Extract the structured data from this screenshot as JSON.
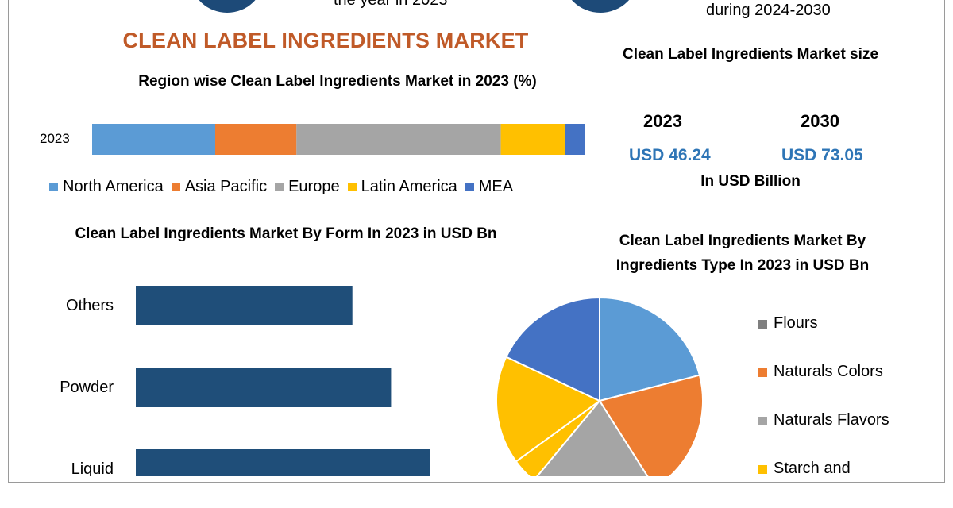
{
  "header": {
    "snippet_left": "the year in 2023",
    "snippet_right": "during 2024-2030"
  },
  "title": "CLEAN LABEL INGREDIENTS MARKET",
  "market_size": {
    "title": "Clean Label Ingredients Market size",
    "years": [
      "2023",
      "2030"
    ],
    "values": [
      "USD 46.24",
      "USD 73.05"
    ],
    "unit": "In USD Billion"
  },
  "colors": {
    "title": "#c05a28",
    "dark_blue": "#1d4a78",
    "value_blue": "#2e75b6"
  },
  "chart_data": [
    {
      "type": "bar",
      "orientation": "horizontal",
      "stacked": true,
      "title": "Region wise Clean Label Ingredients Market in 2023 (%)",
      "categories": [
        "2023"
      ],
      "xlim": [
        0,
        100
      ],
      "legend_position": "bottom",
      "series": [
        {
          "name": "North America",
          "values": [
            25
          ],
          "color": "#5b9bd5"
        },
        {
          "name": "Asia Pacific",
          "values": [
            16.5
          ],
          "color": "#ed7d31"
        },
        {
          "name": "Europe",
          "values": [
            41.5
          ],
          "color": "#a5a5a5"
        },
        {
          "name": "Latin America",
          "values": [
            13
          ],
          "color": "#ffc000"
        },
        {
          "name": "MEA",
          "values": [
            4
          ],
          "color": "#4472c4"
        }
      ]
    },
    {
      "type": "bar",
      "orientation": "horizontal",
      "title": "Clean Label Ingredients Market By Form In 2023 in USD Bn",
      "categories": [
        "Others",
        "Powder",
        "Liquid"
      ],
      "values": [
        14,
        16.5,
        19
      ],
      "xlim": [
        0,
        25
      ],
      "color": "#1f4e79"
    },
    {
      "type": "pie",
      "title": "Clean Label Ingredients Market By Ingredients Type In 2023 in USD Bn",
      "legend_position": "right",
      "labels": [
        "Flours",
        "Naturals Colors",
        "Naturals Flavors",
        "Starch and",
        "",
        ""
      ],
      "values": [
        21,
        20,
        20,
        4,
        17,
        18
      ],
      "colors": [
        "#5b9bd5",
        "#ed7d31",
        "#a5a5a5",
        "#ffc000",
        "#ffc000",
        "#4472c4"
      ],
      "legend_colors": [
        "#7f7f7f",
        "#ed7d31",
        "#a5a5a5",
        "#ffc000"
      ]
    }
  ]
}
